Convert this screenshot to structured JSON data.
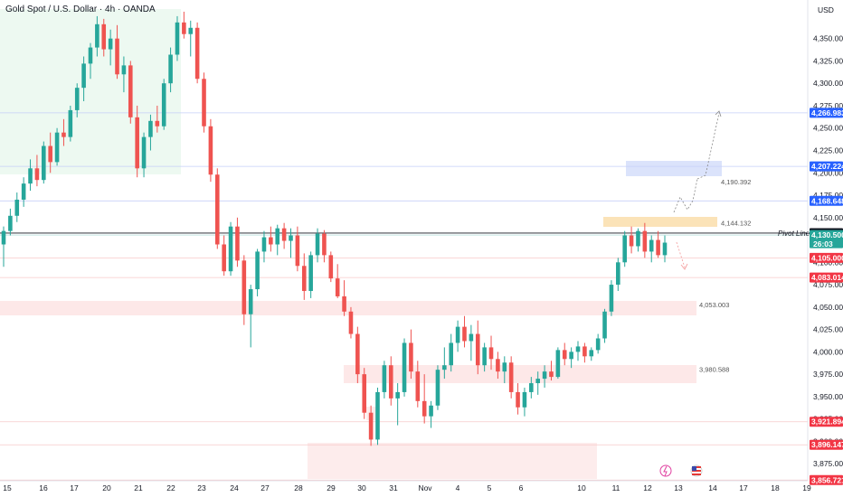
{
  "header": {
    "title": "Gold Spot / U.S. Dollar · 4h · OANDA",
    "currency": "USD"
  },
  "colors": {
    "up": "#26a69a",
    "down": "#ef5350",
    "pivot": "#131722",
    "blueLine": "#b7c4f5",
    "redLine": "#f7c2c2"
  },
  "chart_data": {
    "type": "candlestick",
    "title": "Gold Spot / U.S. Dollar · 4h · OANDA",
    "ylim": [
      3856,
      4385
    ],
    "yticks": [
      3875,
      3900,
      3925,
      3950,
      3975,
      4000,
      4025,
      4050,
      4075,
      4100,
      4125,
      4150,
      4175,
      4200,
      4225,
      4250,
      4275,
      4300,
      4325,
      4350
    ],
    "ytick_labels": [
      "3,875.000",
      "3,900.000",
      "3,925.000",
      "3,950.000",
      "3,975.000",
      "4,000.000",
      "4,025.000",
      "4,050.000",
      "4,075.000",
      "4,100.000",
      "4,125.000",
      "4,150.000",
      "4,175.000",
      "4,200.000",
      "4,225.000",
      "4,250.000",
      "4,275.000",
      "4,300.000",
      "4,325.000",
      "4,350.000"
    ],
    "xticks": [
      "15",
      "16",
      "17",
      "20",
      "21",
      "22",
      "23",
      "24",
      "27",
      "28",
      "29",
      "30",
      "31",
      "Nov",
      "4",
      "5",
      "6",
      "10",
      "11",
      "12",
      "13",
      "14",
      "17",
      "18",
      "19"
    ],
    "ohlc": [
      [
        4120,
        4140,
        4095,
        4135
      ],
      [
        4135,
        4160,
        4130,
        4152
      ],
      [
        4152,
        4178,
        4145,
        4170
      ],
      [
        4170,
        4195,
        4162,
        4188
      ],
      [
        4188,
        4215,
        4180,
        4205
      ],
      [
        4205,
        4220,
        4185,
        4192
      ],
      [
        4192,
        4235,
        4188,
        4230
      ],
      [
        4230,
        4245,
        4200,
        4212
      ],
      [
        4212,
        4250,
        4208,
        4245
      ],
      [
        4245,
        4260,
        4230,
        4240
      ],
      [
        4240,
        4275,
        4235,
        4270
      ],
      [
        4270,
        4300,
        4262,
        4295
      ],
      [
        4295,
        4330,
        4280,
        4322
      ],
      [
        4322,
        4345,
        4305,
        4340
      ],
      [
        4340,
        4375,
        4330,
        4366
      ],
      [
        4366,
        4372,
        4330,
        4338
      ],
      [
        4338,
        4360,
        4320,
        4350
      ],
      [
        4350,
        4365,
        4305,
        4310
      ],
      [
        4310,
        4330,
        4290,
        4320
      ],
      [
        4320,
        4325,
        4255,
        4262
      ],
      [
        4262,
        4275,
        4195,
        4205
      ],
      [
        4205,
        4245,
        4195,
        4240
      ],
      [
        4240,
        4265,
        4225,
        4258
      ],
      [
        4258,
        4275,
        4245,
        4252
      ],
      [
        4252,
        4305,
        4248,
        4300
      ],
      [
        4300,
        4340,
        4290,
        4332
      ],
      [
        4332,
        4375,
        4325,
        4368
      ],
      [
        4368,
        4380,
        4350,
        4355
      ],
      [
        4355,
        4370,
        4330,
        4362
      ],
      [
        4362,
        4368,
        4300,
        4305
      ],
      [
        4305,
        4312,
        4245,
        4252
      ],
      [
        4252,
        4260,
        4190,
        4198
      ],
      [
        4198,
        4205,
        4115,
        4120
      ],
      [
        4120,
        4130,
        4085,
        4090
      ],
      [
        4090,
        4145,
        4085,
        4140
      ],
      [
        4140,
        4150,
        4095,
        4102
      ],
      [
        4102,
        4108,
        4030,
        4042
      ],
      [
        4042,
        4075,
        4005,
        4070
      ],
      [
        4070,
        4115,
        4062,
        4112
      ],
      [
        4112,
        4135,
        4100,
        4128
      ],
      [
        4128,
        4140,
        4112,
        4120
      ],
      [
        4120,
        4142,
        4108,
        4138
      ],
      [
        4138,
        4144,
        4115,
        4124
      ],
      [
        4124,
        4138,
        4105,
        4130
      ],
      [
        4130,
        4140,
        4090,
        4096
      ],
      [
        4096,
        4110,
        4058,
        4068
      ],
      [
        4068,
        4112,
        4060,
        4108
      ],
      [
        4108,
        4138,
        4100,
        4132
      ],
      [
        4132,
        4136,
        4100,
        4108
      ],
      [
        4108,
        4112,
        4078,
        4082
      ],
      [
        4082,
        4098,
        4060,
        4062
      ],
      [
        4062,
        4080,
        4040,
        4045
      ],
      [
        4045,
        4050,
        4015,
        4020
      ],
      [
        4020,
        4028,
        3965,
        3975
      ],
      [
        3975,
        3982,
        3925,
        3932
      ],
      [
        3932,
        3940,
        3895,
        3902
      ],
      [
        3902,
        3960,
        3896,
        3955
      ],
      [
        3955,
        3990,
        3948,
        3985
      ],
      [
        3985,
        3995,
        3940,
        3948
      ],
      [
        3948,
        3965,
        3918,
        3955
      ],
      [
        3955,
        4015,
        3950,
        4010
      ],
      [
        4010,
        4025,
        3970,
        3978
      ],
      [
        3978,
        3990,
        3938,
        3945
      ],
      [
        3945,
        3975,
        3920,
        3928
      ],
      [
        3928,
        3945,
        3915,
        3940
      ],
      [
        3940,
        3985,
        3935,
        3980
      ],
      [
        3980,
        4005,
        3970,
        3985
      ],
      [
        3985,
        4020,
        3978,
        4010
      ],
      [
        4010,
        4035,
        4000,
        4028
      ],
      [
        4028,
        4040,
        4005,
        4012
      ],
      [
        4012,
        4030,
        3990,
        4020
      ],
      [
        4020,
        4035,
        3975,
        3985
      ],
      [
        3985,
        4010,
        3978,
        4005
      ],
      [
        4005,
        4018,
        3980,
        3992
      ],
      [
        3992,
        4000,
        3970,
        3978
      ],
      [
        3978,
        3995,
        3965,
        3988
      ],
      [
        3988,
        3995,
        3948,
        3955
      ],
      [
        3955,
        3965,
        3930,
        3938
      ],
      [
        3938,
        3960,
        3928,
        3955
      ],
      [
        3955,
        3972,
        3948,
        3965
      ],
      [
        3965,
        3978,
        3952,
        3970
      ],
      [
        3970,
        3985,
        3960,
        3978
      ],
      [
        3978,
        3990,
        3968,
        3972
      ],
      [
        3972,
        4005,
        3970,
        4002
      ],
      [
        4002,
        4010,
        3985,
        3992
      ],
      [
        3992,
        4005,
        3982,
        4000
      ],
      [
        4000,
        4012,
        3990,
        4006
      ],
      [
        4006,
        4010,
        3988,
        3995
      ],
      [
        3995,
        4005,
        3990,
        4002
      ],
      [
        4002,
        4020,
        3998,
        4015
      ],
      [
        4015,
        4048,
        4010,
        4045
      ],
      [
        4045,
        4080,
        4040,
        4075
      ],
      [
        4075,
        4105,
        4068,
        4100
      ],
      [
        4100,
        4135,
        4095,
        4130
      ],
      [
        4130,
        4140,
        4110,
        4118
      ],
      [
        4118,
        4138,
        4112,
        4135
      ],
      [
        4135,
        4144,
        4105,
        4112
      ],
      [
        4112,
        4130,
        4100,
        4125
      ],
      [
        4125,
        4135,
        4105,
        4108
      ],
      [
        4108,
        4130,
        4100,
        4122
      ]
    ],
    "levels": [
      {
        "price": 4266.983,
        "label": "4,266.983",
        "color": "#2962ff"
      },
      {
        "price": 4207.224,
        "label": "4,207.224",
        "color": "#2962ff"
      },
      {
        "price": 4168.648,
        "label": "4,168.648",
        "color": "#2962ff"
      },
      {
        "price": 4132.65,
        "label": "4,132.650",
        "color": "#131722"
      },
      {
        "price": 4130.5,
        "label": "4,130.500",
        "color": "#26a69a"
      },
      {
        "price": 4105.0,
        "label": "4,105.000",
        "color": "#f23645"
      },
      {
        "price": 4083.014,
        "label": "4,083.014",
        "color": "#f23645"
      },
      {
        "price": 3921.894,
        "label": "3,921.894",
        "color": "#f23645"
      },
      {
        "price": 3896.147,
        "label": "3,896.147",
        "color": "#f23645"
      },
      {
        "price": 3856.721,
        "label": "3,856.721",
        "color": "#f23645"
      }
    ],
    "countdown": "26:03",
    "annotations": [
      {
        "text": "4,190.392",
        "price": 4190.392
      },
      {
        "text": "4,144.132",
        "price": 4144.132
      },
      {
        "text": "4,053.003",
        "price": 4053.003
      },
      {
        "text": "3,980.588",
        "price": 3980.588
      },
      {
        "text": "Pivot Line",
        "price": 4132.65
      }
    ]
  }
}
